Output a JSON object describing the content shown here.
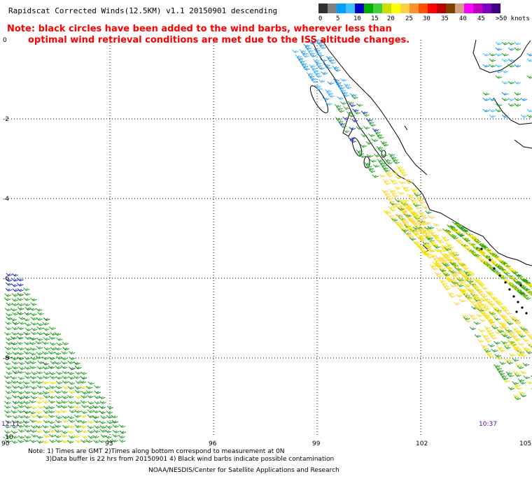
{
  "title": "Rapidscat Corrected Winds(12.5KM) v1.1 20150901 descending",
  "note": {
    "line1": "Note: black circles have been added to the wind barbs, wherever less than",
    "line2": "optimal wind retrieval conditions are met due to the ISS altitude changes."
  },
  "legend": {
    "labels": [
      "0",
      "5",
      "10",
      "15",
      "20",
      "25",
      "30",
      "35",
      "40",
      "45",
      ">50 knots"
    ],
    "colors": [
      "#303030",
      "#808080",
      "#00a0ff",
      "#40c0ff",
      "#0000c0",
      "#00b000",
      "#40d040",
      "#c8e000",
      "#ffff00",
      "#ffd040",
      "#ff9030",
      "#ff5000",
      "#ff0000",
      "#c00000",
      "#804000",
      "#d0a080",
      "#ff00ff",
      "#c000c0",
      "#8000c0",
      "#400080"
    ]
  },
  "axes": {
    "lat_labels": [
      "0",
      "-2",
      "-4",
      "-6",
      "-8",
      "-10"
    ],
    "lon_labels": [
      "90",
      "93",
      "96",
      "99",
      "102",
      "105"
    ]
  },
  "times": {
    "left": "12:11",
    "right": "10:37"
  },
  "footer": {
    "line1": "Note: 1) Times are GMT 2)Times along bottom correspond to measurement at 0N",
    "line2": "3)Data buffer is 22 hrs from 20150901 4) Black wind barbs indicate possible contamination",
    "line3": "NOAA/NESDIS/Center for Satellite Applications and Research"
  }
}
